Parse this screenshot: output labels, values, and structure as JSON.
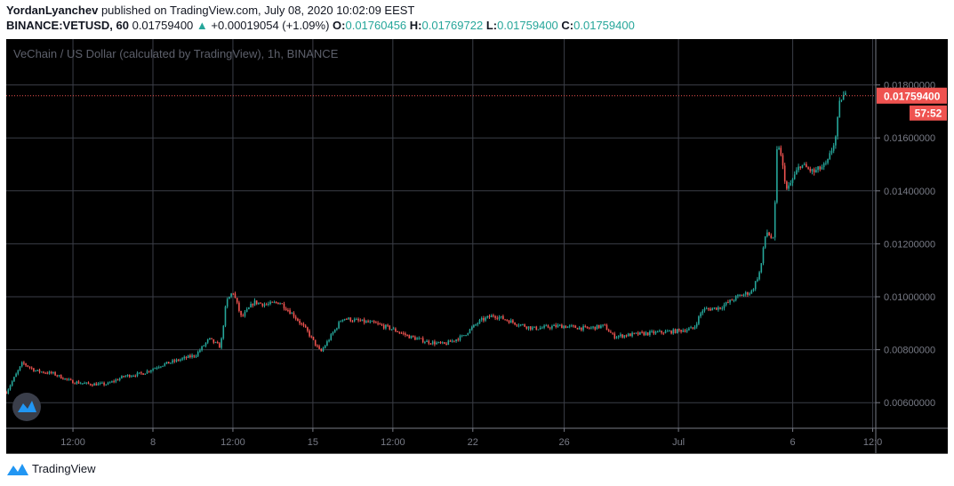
{
  "header": {
    "author": "YordanLyanchev",
    "published": "published on TradingView.com, July 08, 2020 10:02:09 EEST",
    "symbol": "BINANCE:VETUSD, 60",
    "price": "0.01759400",
    "change": "+0.00019054 (+1.09%)",
    "o_label": "O:",
    "o": "0.01760456",
    "h_label": "H:",
    "h": "0.01769722",
    "l_label": "L:",
    "l": "0.01759400",
    "c_label": "C:",
    "c": "0.01759400"
  },
  "footer": {
    "brand": "TradingView"
  },
  "colors": {
    "up": "#26a69a",
    "down": "#ef5350",
    "grid": "#787b86",
    "background": "#000000"
  },
  "chart_data": {
    "type": "candlestick",
    "title": "VeChain / US Dollar (calculated by TradingView), 1h, BINANCE",
    "interval": "1h",
    "y_ticks": [
      "0.01800000",
      "0.01600000",
      "0.01400000",
      "0.01200000",
      "0.01000000",
      "0.00800000",
      "0.00600000"
    ],
    "ylim": [
      0.0055,
      0.0195
    ],
    "x_ticks": [
      {
        "label": "12:00",
        "t": "2020-06-04T12:00"
      },
      {
        "label": "8",
        "t": "2020-06-08T00:00"
      },
      {
        "label": "12:00",
        "t": "2020-06-11T12:00"
      },
      {
        "label": "15",
        "t": "2020-06-15T00:00"
      },
      {
        "label": "12:00",
        "t": "2020-06-18T12:00"
      },
      {
        "label": "22",
        "t": "2020-06-22T00:00"
      },
      {
        "label": "26",
        "t": "2020-06-26T00:00"
      },
      {
        "label": "Jul",
        "t": "2020-07-01T00:00"
      },
      {
        "label": "6",
        "t": "2020-07-06T00:00"
      },
      {
        "label": "12:0",
        "t": "2020-07-09T12:00"
      }
    ],
    "last_price": "0.01759400",
    "countdown": "57:52",
    "approx_close": [
      [
        "2020-06-01T14:00",
        0.0064
      ],
      [
        "2020-06-02T07:00",
        0.0075
      ],
      [
        "2020-06-02T21:00",
        0.0072
      ],
      [
        "2020-06-03T15:00",
        0.0071
      ],
      [
        "2020-06-04T10:00",
        0.0068
      ],
      [
        "2020-06-05T05:00",
        0.0067
      ],
      [
        "2020-06-06T00:00",
        0.0067
      ],
      [
        "2020-06-06T18:00",
        0.007
      ],
      [
        "2020-06-07T13:00",
        0.0071
      ],
      [
        "2020-06-08T07:00",
        0.0074
      ],
      [
        "2020-06-09T02:00",
        0.0076
      ],
      [
        "2020-06-09T21:00",
        0.0078
      ],
      [
        "2020-06-10T11:00",
        0.0084
      ],
      [
        "2020-06-10T23:00",
        0.0081
      ],
      [
        "2020-06-11T05:00",
        0.0098
      ],
      [
        "2020-06-11T12:00",
        0.0102
      ],
      [
        "2020-06-11T21:00",
        0.0092
      ],
      [
        "2020-06-12T10:00",
        0.0098
      ],
      [
        "2020-06-13T00:00",
        0.0097
      ],
      [
        "2020-06-13T13:00",
        0.0098
      ],
      [
        "2020-06-14T04:00",
        0.0093
      ],
      [
        "2020-06-14T18:00",
        0.0087
      ],
      [
        "2020-06-15T08:00",
        0.0079
      ],
      [
        "2020-06-15T17:00",
        0.0084
      ],
      [
        "2020-06-16T07:00",
        0.0092
      ],
      [
        "2020-06-16T21:00",
        0.0091
      ],
      [
        "2020-06-17T16:00",
        0.009
      ],
      [
        "2020-06-18T10:00",
        0.0088
      ],
      [
        "2020-06-19T05:00",
        0.0085
      ],
      [
        "2020-06-20T00:00",
        0.0083
      ],
      [
        "2020-06-20T18:00",
        0.0082
      ],
      [
        "2020-06-21T13:00",
        0.0085
      ],
      [
        "2020-06-22T08:00",
        0.0091
      ],
      [
        "2020-06-22T22:00",
        0.0093
      ],
      [
        "2020-06-23T21:00",
        0.009
      ],
      [
        "2020-06-24T16:00",
        0.0088
      ],
      [
        "2020-06-25T20:00",
        0.0089
      ],
      [
        "2020-06-27T00:00",
        0.0088
      ],
      [
        "2020-06-27T18:00",
        0.0089
      ],
      [
        "2020-06-28T04:00",
        0.0085
      ],
      [
        "2020-06-29T08:00",
        0.0086
      ],
      [
        "2020-06-30T21:00",
        0.0087
      ],
      [
        "2020-07-01T16:00",
        0.0088
      ],
      [
        "2020-07-02T01:00",
        0.0095
      ],
      [
        "2020-07-02T20:00",
        0.0096
      ],
      [
        "2020-07-03T14:00",
        0.01
      ],
      [
        "2020-07-04T05:00",
        0.0102
      ],
      [
        "2020-07-04T14:00",
        0.011
      ],
      [
        "2020-07-04T20:00",
        0.0125
      ],
      [
        "2020-07-05T04:00",
        0.0121
      ],
      [
        "2020-07-05T08:00",
        0.016
      ],
      [
        "2020-07-05T18:00",
        0.014
      ],
      [
        "2020-07-06T08:00",
        0.015
      ],
      [
        "2020-07-06T22:00",
        0.0147
      ],
      [
        "2020-07-07T12:00",
        0.015
      ],
      [
        "2020-07-07T21:00",
        0.016
      ],
      [
        "2020-07-08T02:00",
        0.0175
      ],
      [
        "2020-07-08T08:00",
        0.0176
      ]
    ]
  }
}
